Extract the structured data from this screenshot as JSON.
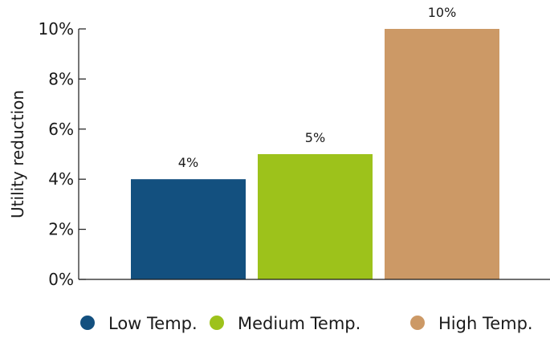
{
  "chart_data": {
    "type": "bar",
    "title": "",
    "xlabel": "",
    "ylabel": "Utility reduction",
    "categories": [
      "Low Temp.",
      "Medium Temp.",
      "High Temp."
    ],
    "series": [
      {
        "name": "",
        "values": [
          4,
          5,
          10
        ],
        "value_labels": [
          "4%",
          "5%",
          "10%"
        ]
      }
    ],
    "colors": [
      "#13507f",
      "#9dc21b",
      "#cc9966"
    ],
    "ylim": [
      0,
      10
    ],
    "yticks": [
      0,
      2,
      4,
      6,
      8,
      10
    ],
    "ytick_labels": [
      "0%",
      "2%",
      "4%",
      "6%",
      "8%",
      "10%"
    ],
    "grid": false,
    "legend": {
      "position": "bottom",
      "entries": [
        "Low Temp.",
        "Medium Temp.",
        "High Temp."
      ]
    }
  }
}
